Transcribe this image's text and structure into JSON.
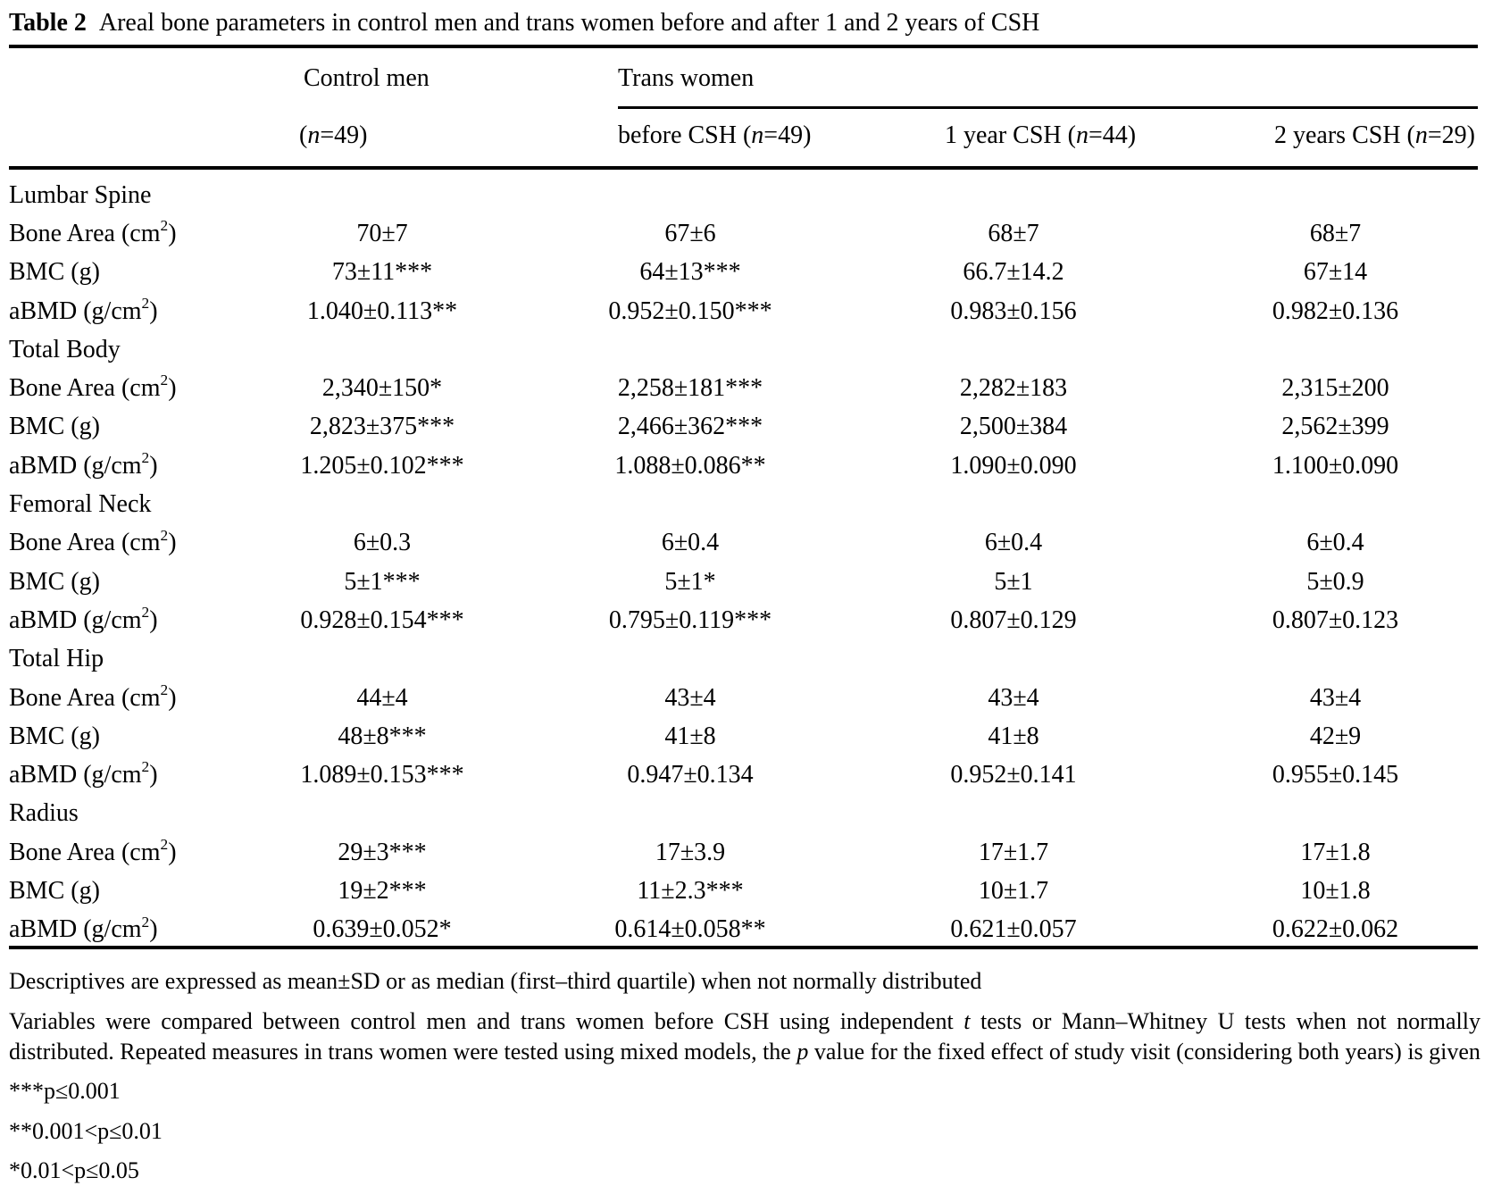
{
  "title": {
    "tag": "Table 2",
    "text": "Areal bone parameters in control men and trans women before and after 1 and 2 years of CSH"
  },
  "header": {
    "group1": "Control men",
    "group2": "Trans women",
    "sub": [
      {
        "pre": "(",
        "it": "n",
        "post": "=49)"
      },
      {
        "pre": "before CSH (",
        "it": "n",
        "post": "=49)"
      },
      {
        "pre": "1 year CSH (",
        "it": "n",
        "post": "=44)"
      },
      {
        "pre": "2 years CSH (",
        "it": "n",
        "post": "=29)"
      }
    ]
  },
  "table": {
    "sections": [
      {
        "name": "Lumbar Spine",
        "rows": [
          {
            "label": {
              "pre": "Bone Area (cm",
              "sup": "2",
              "post": ")"
            },
            "values": [
              "70±7",
              "67±6",
              "68±7",
              "68±7"
            ]
          },
          {
            "label": {
              "pre": "BMC (g)",
              "sup": "",
              "post": ""
            },
            "values": [
              "73±11***",
              "64±13***",
              "66.7±14.2",
              "67±14"
            ]
          },
          {
            "label": {
              "pre": "aBMD (g/cm",
              "sup": "2",
              "post": ")"
            },
            "values": [
              "1.040±0.113**",
              "0.952±0.150***",
              "0.983±0.156",
              "0.982±0.136"
            ]
          }
        ]
      },
      {
        "name": "Total Body",
        "rows": [
          {
            "label": {
              "pre": "Bone Area (cm",
              "sup": "2",
              "post": ")"
            },
            "values": [
              "2,340±150*",
              "2,258±181***",
              "2,282±183",
              "2,315±200"
            ]
          },
          {
            "label": {
              "pre": "BMC (g)",
              "sup": "",
              "post": ""
            },
            "values": [
              "2,823±375***",
              "2,466±362***",
              "2,500±384",
              "2,562±399"
            ]
          },
          {
            "label": {
              "pre": "aBMD (g/cm",
              "sup": "2",
              "post": ")"
            },
            "values": [
              "1.205±0.102***",
              "1.088±0.086**",
              "1.090±0.090",
              "1.100±0.090"
            ]
          }
        ]
      },
      {
        "name": "Femoral Neck",
        "rows": [
          {
            "label": {
              "pre": "Bone Area (cm",
              "sup": "2",
              "post": ")"
            },
            "values": [
              "6±0.3",
              "6±0.4",
              "6±0.4",
              "6±0.4"
            ]
          },
          {
            "label": {
              "pre": "BMC (g)",
              "sup": "",
              "post": ""
            },
            "values": [
              "5±1***",
              "5±1*",
              "5±1",
              "5±0.9"
            ]
          },
          {
            "label": {
              "pre": "aBMD (g/cm",
              "sup": "2",
              "post": ")"
            },
            "values": [
              "0.928±0.154***",
              "0.795±0.119***",
              "0.807±0.129",
              "0.807±0.123"
            ]
          }
        ]
      },
      {
        "name": "Total Hip",
        "rows": [
          {
            "label": {
              "pre": "Bone Area (cm",
              "sup": "2",
              "post": ")"
            },
            "values": [
              "44±4",
              "43±4",
              "43±4",
              "43±4"
            ]
          },
          {
            "label": {
              "pre": "BMC (g)",
              "sup": "",
              "post": ""
            },
            "values": [
              "48±8***",
              "41±8",
              "41±8",
              "42±9"
            ]
          },
          {
            "label": {
              "pre": "aBMD (g/cm",
              "sup": "2",
              "post": ")"
            },
            "values": [
              "1.089±0.153***",
              "0.947±0.134",
              "0.952±0.141",
              "0.955±0.145"
            ]
          }
        ]
      },
      {
        "name": "Radius",
        "rows": [
          {
            "label": {
              "pre": "Bone Area (cm",
              "sup": "2",
              "post": ")"
            },
            "values": [
              "29±3***",
              "17±3.9",
              "17±1.7",
              "17±1.8"
            ]
          },
          {
            "label": {
              "pre": "BMC (g)",
              "sup": "",
              "post": ""
            },
            "values": [
              "19±2***",
              "11±2.3***",
              "10±1.7",
              "10±1.8"
            ]
          },
          {
            "label": {
              "pre": "aBMD (g/cm",
              "sup": "2",
              "post": ")"
            },
            "values": [
              "0.639±0.052*",
              "0.614±0.058**",
              "0.621±0.057",
              "0.622±0.062"
            ]
          }
        ]
      }
    ]
  },
  "footnotes": {
    "fn1": "Descriptives are expressed as mean±SD or as median (first–third quartile) when not normally distributed",
    "fn2_lines": [
      [
        {
          "t": "Variables were compared between control men and trans women before CSH using independent "
        },
        {
          "t": "t",
          "i": true
        },
        {
          "t": " tests or Mann–Whitney U tests when not normally"
        }
      ],
      [
        {
          "t": "distributed. Repeated measures in trans women were tested using mixed models, the "
        },
        {
          "t": "p",
          "i": true
        },
        {
          "t": " value for the fixed effect of study visit (considering both years) is given"
        }
      ]
    ],
    "sig": [
      "***p≤0.001",
      "**0.001<p≤0.01",
      "*0.01<p≤0.05"
    ]
  }
}
